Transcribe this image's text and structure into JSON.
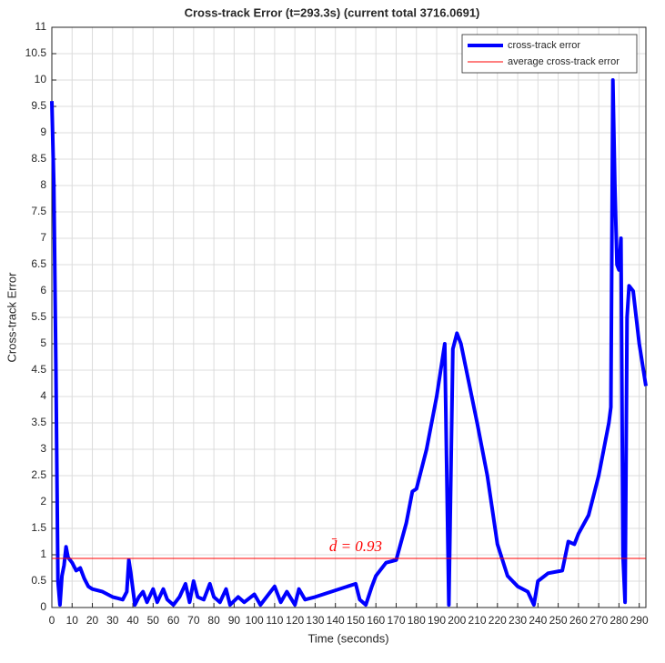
{
  "chart_data": {
    "type": "line",
    "title": "Cross-track Error (t=293.3s) (current total  3716.0691)",
    "x_label": "Time (seconds)",
    "y_label": "Cross-track Error",
    "annotation": "d̄ = 0.93",
    "xlim": [
      0,
      293.3
    ],
    "ylim": [
      0,
      11
    ],
    "xticks": [
      0,
      10,
      20,
      30,
      40,
      50,
      60,
      70,
      80,
      90,
      100,
      110,
      120,
      130,
      140,
      150,
      160,
      170,
      180,
      190,
      200,
      210,
      220,
      230,
      240,
      250,
      260,
      270,
      280,
      290
    ],
    "yticks": [
      0,
      0.5,
      1,
      1.5,
      2,
      2.5,
      3,
      3.5,
      4,
      4.5,
      5,
      5.5,
      6,
      6.5,
      7,
      7.5,
      8,
      8.5,
      9,
      9.5,
      10,
      10.5,
      11
    ],
    "grid": true,
    "legend": "top-right",
    "series": [
      {
        "name": "cross-track error",
        "color": "#0000ff",
        "x": [
          0,
          1,
          2,
          3,
          4,
          5,
          6,
          7,
          8,
          10,
          12,
          14,
          16,
          18,
          20,
          25,
          30,
          35,
          37,
          38,
          39,
          41,
          43,
          45,
          47,
          50,
          52,
          55,
          57,
          60,
          63,
          66,
          68,
          70,
          72,
          75,
          78,
          80,
          83,
          86,
          88,
          92,
          95,
          100,
          103,
          106,
          110,
          113,
          116,
          120,
          122,
          125,
          130,
          150,
          152,
          155,
          158,
          160,
          165,
          170,
          175,
          178,
          180,
          185,
          190,
          194,
          196,
          198,
          200,
          202,
          210,
          215,
          220,
          225,
          230,
          235,
          238,
          240,
          245,
          252,
          255,
          258,
          260,
          265,
          270,
          275,
          276,
          277,
          278,
          279,
          280,
          281,
          282,
          283,
          284,
          285,
          287,
          290,
          293.3
        ],
        "values": [
          9.6,
          8,
          4.5,
          0.5,
          0.05,
          0.6,
          0.8,
          1.15,
          0.95,
          0.85,
          0.7,
          0.75,
          0.55,
          0.4,
          0.35,
          0.3,
          0.2,
          0.15,
          0.3,
          0.9,
          0.65,
          0.05,
          0.2,
          0.3,
          0.1,
          0.35,
          0.1,
          0.35,
          0.15,
          0.05,
          0.2,
          0.45,
          0.1,
          0.5,
          0.2,
          0.15,
          0.45,
          0.2,
          0.1,
          0.35,
          0.05,
          0.2,
          0.1,
          0.25,
          0.05,
          0.2,
          0.4,
          0.1,
          0.3,
          0.05,
          0.35,
          0.15,
          0.2,
          0.45,
          0.15,
          0.05,
          0.4,
          0.6,
          0.85,
          0.9,
          1.6,
          2.2,
          2.25,
          3,
          4,
          5,
          0.05,
          4.9,
          5.2,
          5,
          3.5,
          2.5,
          1.2,
          0.6,
          0.4,
          0.3,
          0.05,
          0.5,
          0.65,
          0.7,
          1.25,
          1.2,
          1.4,
          1.75,
          2.5,
          3.5,
          3.8,
          10,
          8,
          6.5,
          6.4,
          7,
          1,
          0.1,
          5.5,
          6.1,
          6,
          5,
          4.2
        ]
      },
      {
        "name": "average cross-track error",
        "color": "#ff0000",
        "value": 0.93
      }
    ]
  }
}
